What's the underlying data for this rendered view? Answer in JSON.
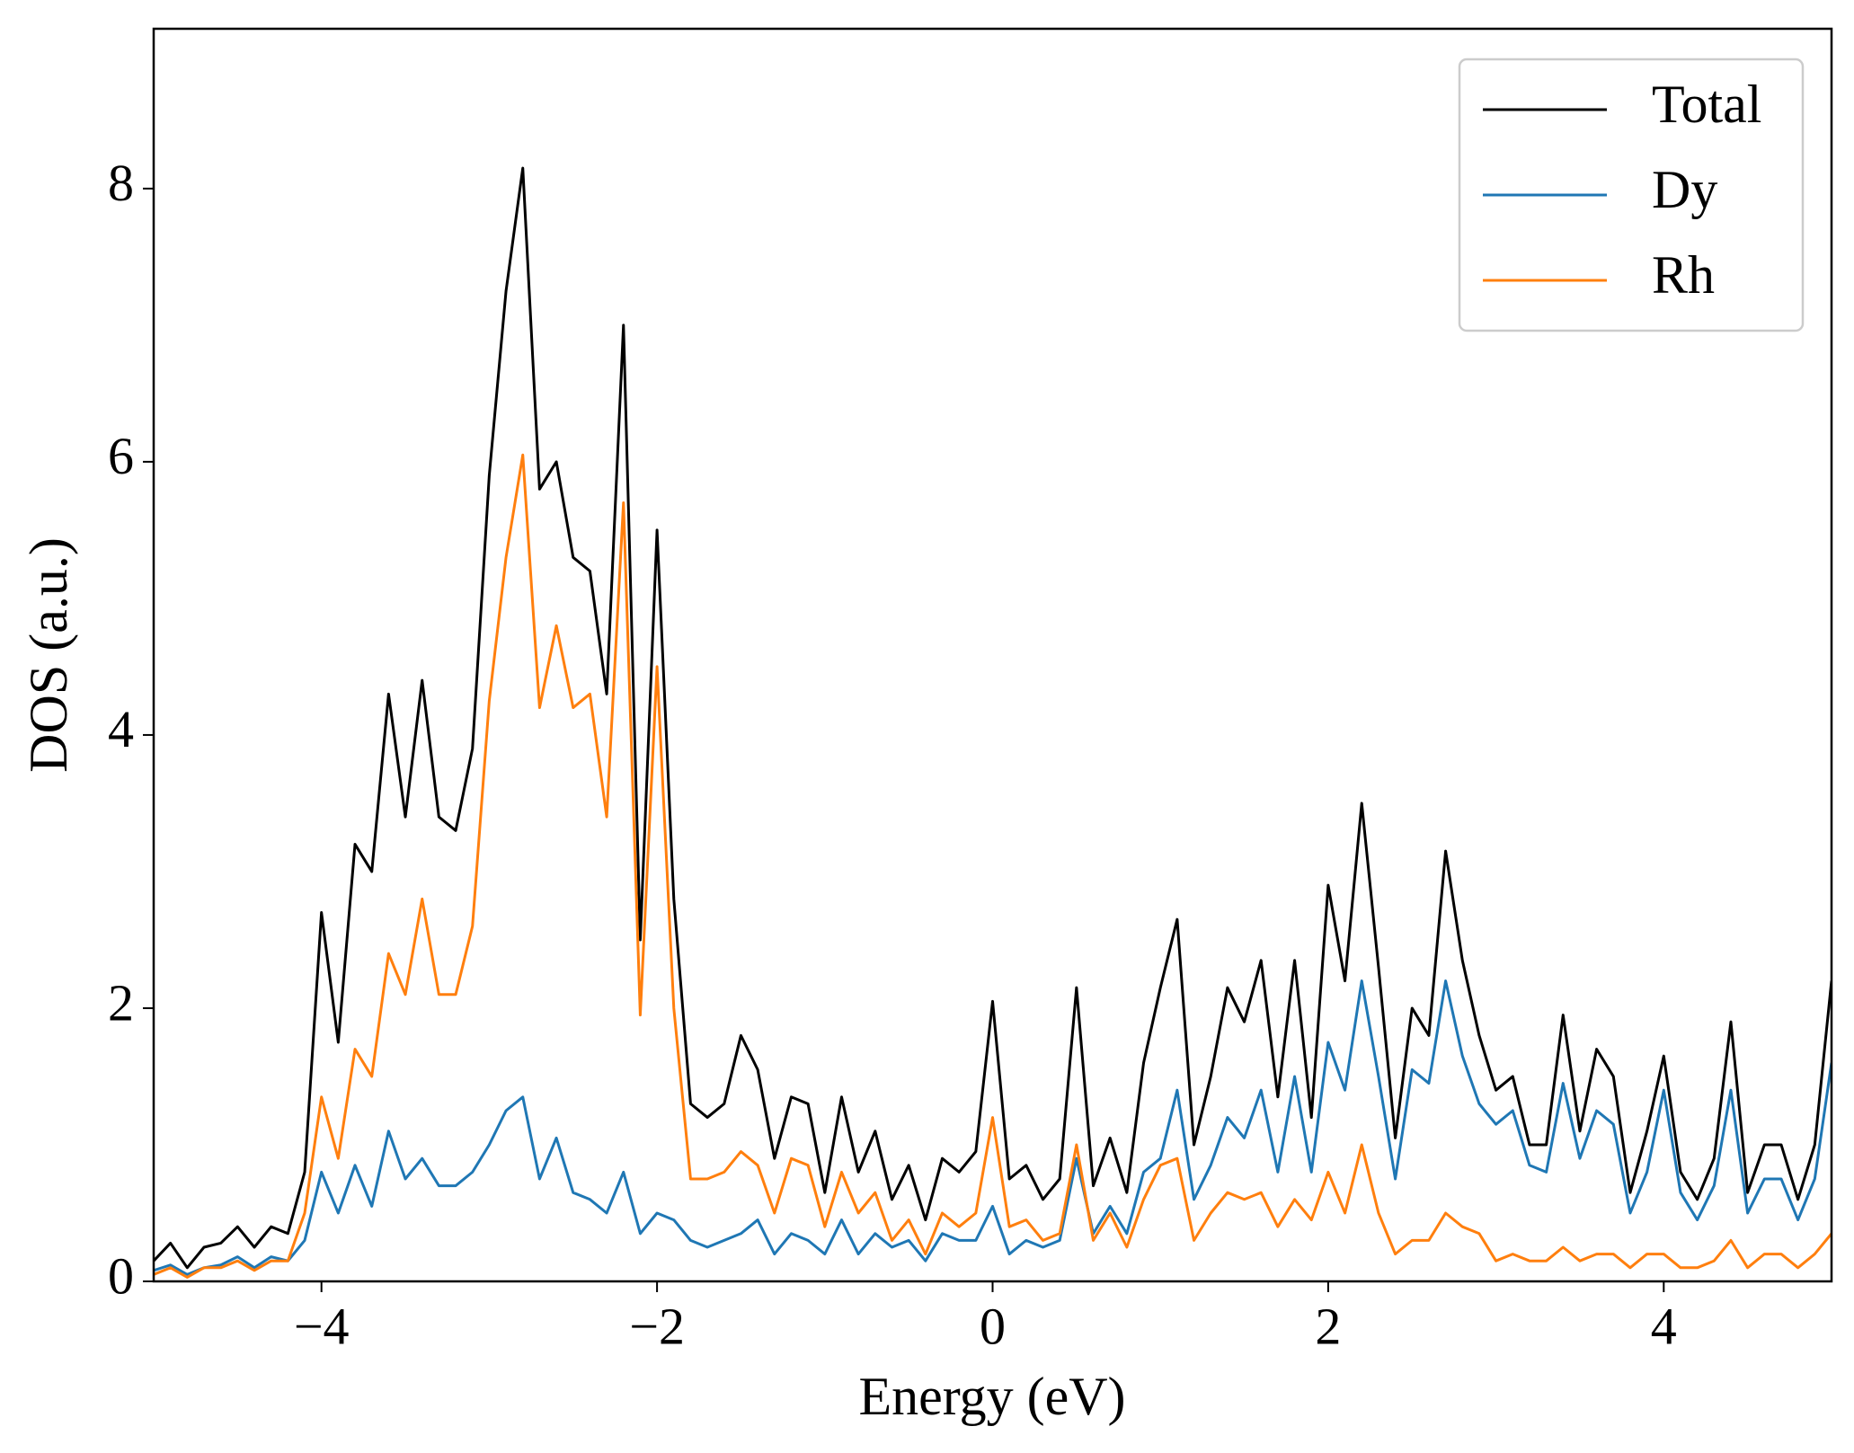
{
  "chart_data": {
    "type": "line",
    "xlabel": "Energy (eV)",
    "ylabel": "DOS (a.u.)",
    "x": [
      -5.0,
      -4.9,
      -4.8,
      -4.7,
      -4.6,
      -4.5,
      -4.4,
      -4.3,
      -4.2,
      -4.1,
      -4.0,
      -3.9,
      -3.8,
      -3.7,
      -3.6,
      -3.5,
      -3.4,
      -3.3,
      -3.2,
      -3.1,
      -3.0,
      -2.9,
      -2.8,
      -2.7,
      -2.6,
      -2.5,
      -2.4,
      -2.3,
      -2.2,
      -2.1,
      -2.0,
      -1.9,
      -1.8,
      -1.7,
      -1.6,
      -1.5,
      -1.4,
      -1.3,
      -1.2,
      -1.1,
      -1.0,
      -0.9,
      -0.8,
      -0.7,
      -0.6,
      -0.5,
      -0.4,
      -0.3,
      -0.2,
      -0.1,
      0.0,
      0.1,
      0.2,
      0.3,
      0.4,
      0.5,
      0.6,
      0.7,
      0.8,
      0.9,
      1.0,
      1.1,
      1.2,
      1.3,
      1.4,
      1.5,
      1.6,
      1.7,
      1.8,
      1.9,
      2.0,
      2.1,
      2.2,
      2.3,
      2.4,
      2.5,
      2.6,
      2.7,
      2.8,
      2.9,
      3.0,
      3.1,
      3.2,
      3.3,
      3.4,
      3.5,
      3.6,
      3.7,
      3.8,
      3.9,
      4.0,
      4.1,
      4.2,
      4.3,
      4.4,
      4.5,
      4.6,
      4.7,
      4.8,
      4.9,
      5.0
    ],
    "series": [
      {
        "name": "Total",
        "color": "#000000",
        "values": [
          0.15,
          0.28,
          0.1,
          0.25,
          0.28,
          0.4,
          0.25,
          0.4,
          0.35,
          0.8,
          2.7,
          1.75,
          3.2,
          3.0,
          4.3,
          3.4,
          4.4,
          3.4,
          3.3,
          3.9,
          5.9,
          7.25,
          8.15,
          5.8,
          6.0,
          5.3,
          5.2,
          4.3,
          7.0,
          2.5,
          5.5,
          2.8,
          1.3,
          1.2,
          1.3,
          1.8,
          1.55,
          0.9,
          1.35,
          1.3,
          0.65,
          1.35,
          0.8,
          1.1,
          0.6,
          0.85,
          0.45,
          0.9,
          0.8,
          0.95,
          2.05,
          0.75,
          0.85,
          0.6,
          0.75,
          2.15,
          0.7,
          1.05,
          0.65,
          1.6,
          2.15,
          2.65,
          1.0,
          1.5,
          2.15,
          1.9,
          2.35,
          1.35,
          2.35,
          1.2,
          2.9,
          2.2,
          3.5,
          2.3,
          1.05,
          2.0,
          1.8,
          3.15,
          2.35,
          1.8,
          1.4,
          1.5,
          1.0,
          1.0,
          1.95,
          1.1,
          1.7,
          1.5,
          0.65,
          1.1,
          1.65,
          0.8,
          0.6,
          0.9,
          1.9,
          0.65,
          1.0,
          1.0,
          0.6,
          1.0,
          2.2
        ]
      },
      {
        "name": "Dy",
        "color": "#1f77b4",
        "values": [
          0.08,
          0.12,
          0.05,
          0.1,
          0.12,
          0.18,
          0.1,
          0.18,
          0.15,
          0.3,
          0.8,
          0.5,
          0.85,
          0.55,
          1.1,
          0.75,
          0.9,
          0.7,
          0.7,
          0.8,
          1.0,
          1.25,
          1.35,
          0.75,
          1.05,
          0.65,
          0.6,
          0.5,
          0.8,
          0.35,
          0.5,
          0.45,
          0.3,
          0.25,
          0.3,
          0.35,
          0.45,
          0.2,
          0.35,
          0.3,
          0.2,
          0.45,
          0.2,
          0.35,
          0.25,
          0.3,
          0.15,
          0.35,
          0.3,
          0.3,
          0.55,
          0.2,
          0.3,
          0.25,
          0.3,
          0.9,
          0.35,
          0.55,
          0.35,
          0.8,
          0.9,
          1.4,
          0.6,
          0.85,
          1.2,
          1.05,
          1.4,
          0.8,
          1.5,
          0.8,
          1.75,
          1.4,
          2.2,
          1.5,
          0.75,
          1.55,
          1.45,
          2.2,
          1.65,
          1.3,
          1.15,
          1.25,
          0.85,
          0.8,
          1.45,
          0.9,
          1.25,
          1.15,
          0.5,
          0.8,
          1.4,
          0.65,
          0.45,
          0.7,
          1.4,
          0.5,
          0.75,
          0.75,
          0.45,
          0.75,
          1.6
        ]
      },
      {
        "name": "Rh",
        "color": "#ff7f0e",
        "values": [
          0.05,
          0.1,
          0.03,
          0.1,
          0.1,
          0.15,
          0.08,
          0.15,
          0.15,
          0.5,
          1.35,
          0.9,
          1.7,
          1.5,
          2.4,
          2.1,
          2.8,
          2.1,
          2.1,
          2.6,
          4.25,
          5.3,
          6.05,
          4.2,
          4.8,
          4.2,
          4.3,
          3.4,
          5.7,
          1.95,
          4.5,
          2.0,
          0.75,
          0.75,
          0.8,
          0.95,
          0.85,
          0.5,
          0.9,
          0.85,
          0.4,
          0.8,
          0.5,
          0.65,
          0.3,
          0.45,
          0.2,
          0.5,
          0.4,
          0.5,
          1.2,
          0.4,
          0.45,
          0.3,
          0.35,
          1.0,
          0.3,
          0.5,
          0.25,
          0.6,
          0.85,
          0.9,
          0.3,
          0.5,
          0.65,
          0.6,
          0.65,
          0.4,
          0.6,
          0.45,
          0.8,
          0.5,
          1.0,
          0.5,
          0.2,
          0.3,
          0.3,
          0.5,
          0.4,
          0.35,
          0.15,
          0.2,
          0.15,
          0.15,
          0.25,
          0.15,
          0.2,
          0.2,
          0.1,
          0.2,
          0.2,
          0.1,
          0.1,
          0.15,
          0.3,
          0.1,
          0.2,
          0.2,
          0.1,
          0.2,
          0.35
        ]
      }
    ],
    "xlim": [
      -5,
      5
    ],
    "ylim": [
      0,
      9.17
    ],
    "xticks": [
      {
        "value": -4,
        "label": "−4"
      },
      {
        "value": -2,
        "label": "−2"
      },
      0,
      2,
      4
    ],
    "yticks": [
      0,
      2,
      4,
      6,
      8
    ],
    "legend": "upper right",
    "grid": false
  }
}
